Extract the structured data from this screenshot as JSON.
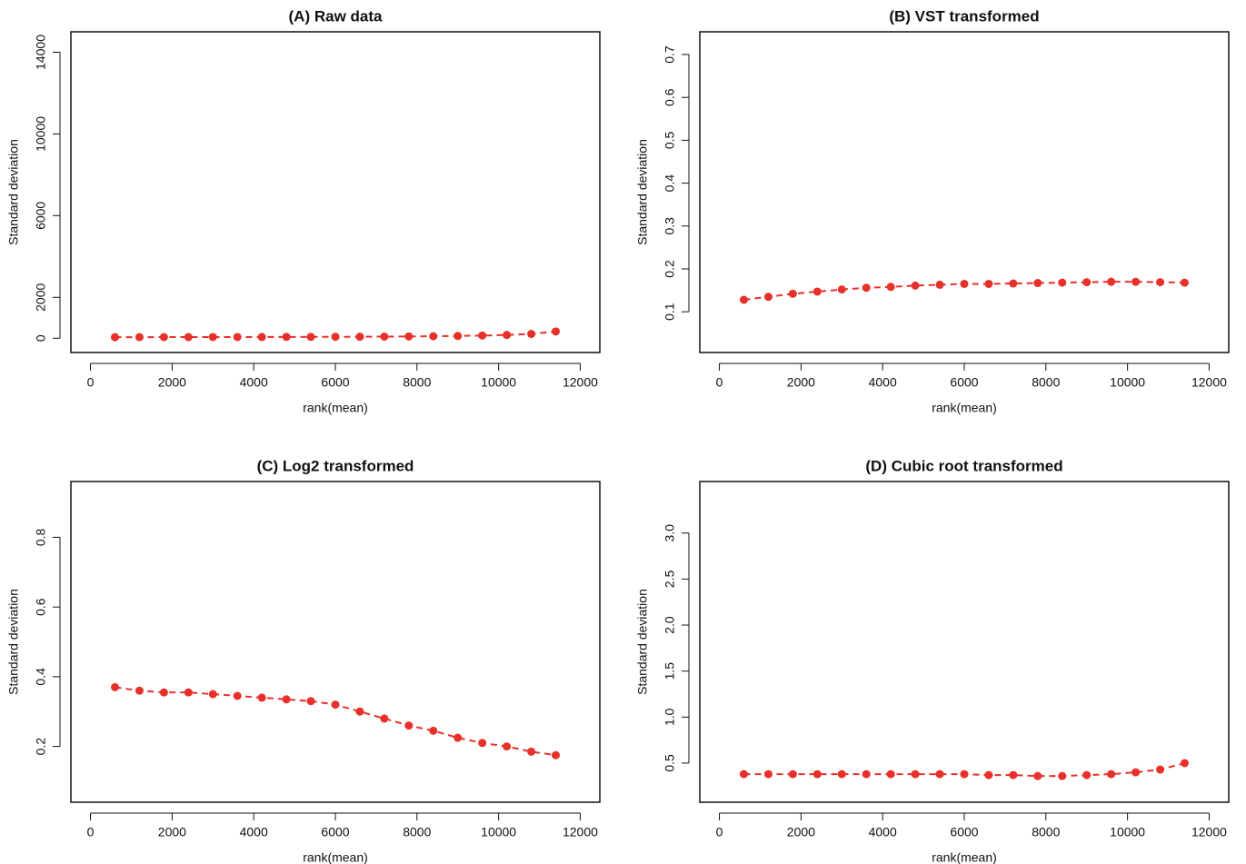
{
  "chart_data": [
    {
      "type": "scatter",
      "title": "(A) Raw data",
      "xlabel": "rank(mean)",
      "ylabel": "Standard deviation",
      "x": [
        600,
        1200,
        1800,
        2400,
        3000,
        3600,
        4200,
        4800,
        5400,
        6000,
        6600,
        7200,
        7800,
        8400,
        9000,
        9600,
        10200,
        10800,
        11400
      ],
      "values": [
        50,
        52,
        54,
        55,
        57,
        58,
        60,
        62,
        65,
        68,
        72,
        78,
        85,
        95,
        110,
        130,
        160,
        210,
        330
      ],
      "color": "#e8302a",
      "connect": "dashed",
      "xlim": [
        -480,
        12480
      ],
      "xticks": [
        0,
        2000,
        4000,
        6000,
        8000,
        10000,
        12000
      ],
      "ylim": [
        -700,
        15000
      ],
      "yticks": [
        0,
        2000,
        6000,
        10000,
        14000
      ]
    },
    {
      "type": "scatter",
      "title": "(B) VST transformed",
      "xlabel": "rank(mean)",
      "ylabel": "Standard deviation",
      "x": [
        600,
        1200,
        1800,
        2400,
        3000,
        3600,
        4200,
        4800,
        5400,
        6000,
        6600,
        7200,
        7800,
        8400,
        9000,
        9600,
        10200,
        10800,
        11400
      ],
      "values": [
        0.128,
        0.135,
        0.142,
        0.147,
        0.152,
        0.156,
        0.158,
        0.161,
        0.163,
        0.165,
        0.165,
        0.166,
        0.167,
        0.168,
        0.169,
        0.17,
        0.17,
        0.169,
        0.168
      ],
      "color": "#e8302a",
      "connect": "dashed",
      "xlim": [
        -480,
        12480
      ],
      "xticks": [
        0,
        2000,
        4000,
        6000,
        8000,
        10000,
        12000
      ],
      "ylim": [
        0.005,
        0.753
      ],
      "yticks": [
        0.1,
        0.2,
        0.3,
        0.4,
        0.5,
        0.6,
        0.7
      ]
    },
    {
      "type": "scatter",
      "title": "(C) Log2 transformed",
      "xlabel": "rank(mean)",
      "ylabel": "Standard deviation",
      "x": [
        600,
        1200,
        1800,
        2400,
        3000,
        3600,
        4200,
        4800,
        5400,
        6000,
        6600,
        7200,
        7800,
        8400,
        9000,
        9600,
        10200,
        10800,
        11400
      ],
      "values": [
        0.37,
        0.36,
        0.355,
        0.355,
        0.35,
        0.345,
        0.34,
        0.335,
        0.33,
        0.32,
        0.3,
        0.28,
        0.26,
        0.245,
        0.225,
        0.21,
        0.2,
        0.185,
        0.175
      ],
      "color": "#e8302a",
      "connect": "dashed",
      "xlim": [
        -480,
        12480
      ],
      "xticks": [
        0,
        2000,
        4000,
        6000,
        8000,
        10000,
        12000
      ],
      "ylim": [
        0.04,
        0.96
      ],
      "yticks": [
        0.2,
        0.4,
        0.6,
        0.8
      ]
    },
    {
      "type": "scatter",
      "title": "(D) Cubic root transformed",
      "xlabel": "rank(mean)",
      "ylabel": "Standard deviation",
      "x": [
        600,
        1200,
        1800,
        2400,
        3000,
        3600,
        4200,
        4800,
        5400,
        6000,
        6600,
        7200,
        7800,
        8400,
        9000,
        9600,
        10200,
        10800,
        11400
      ],
      "values": [
        0.38,
        0.38,
        0.38,
        0.38,
        0.38,
        0.38,
        0.38,
        0.38,
        0.38,
        0.38,
        0.37,
        0.37,
        0.36,
        0.36,
        0.37,
        0.38,
        0.4,
        0.43,
        0.5
      ],
      "color": "#e8302a",
      "connect": "dashed",
      "xlim": [
        -480,
        12480
      ],
      "xticks": [
        0,
        2000,
        4000,
        6000,
        8000,
        10000,
        12000
      ],
      "ylim": [
        0.075,
        3.56
      ],
      "yticks": [
        {
          "value": 0.5,
          "label": "0.5"
        },
        {
          "value": 1,
          "label": "1.0"
        },
        {
          "value": 1.5,
          "label": "1.5"
        },
        {
          "value": 2,
          "label": "2.0"
        },
        {
          "value": 2.5,
          "label": "2.5"
        },
        {
          "value": 3,
          "label": "3.0"
        }
      ]
    }
  ]
}
